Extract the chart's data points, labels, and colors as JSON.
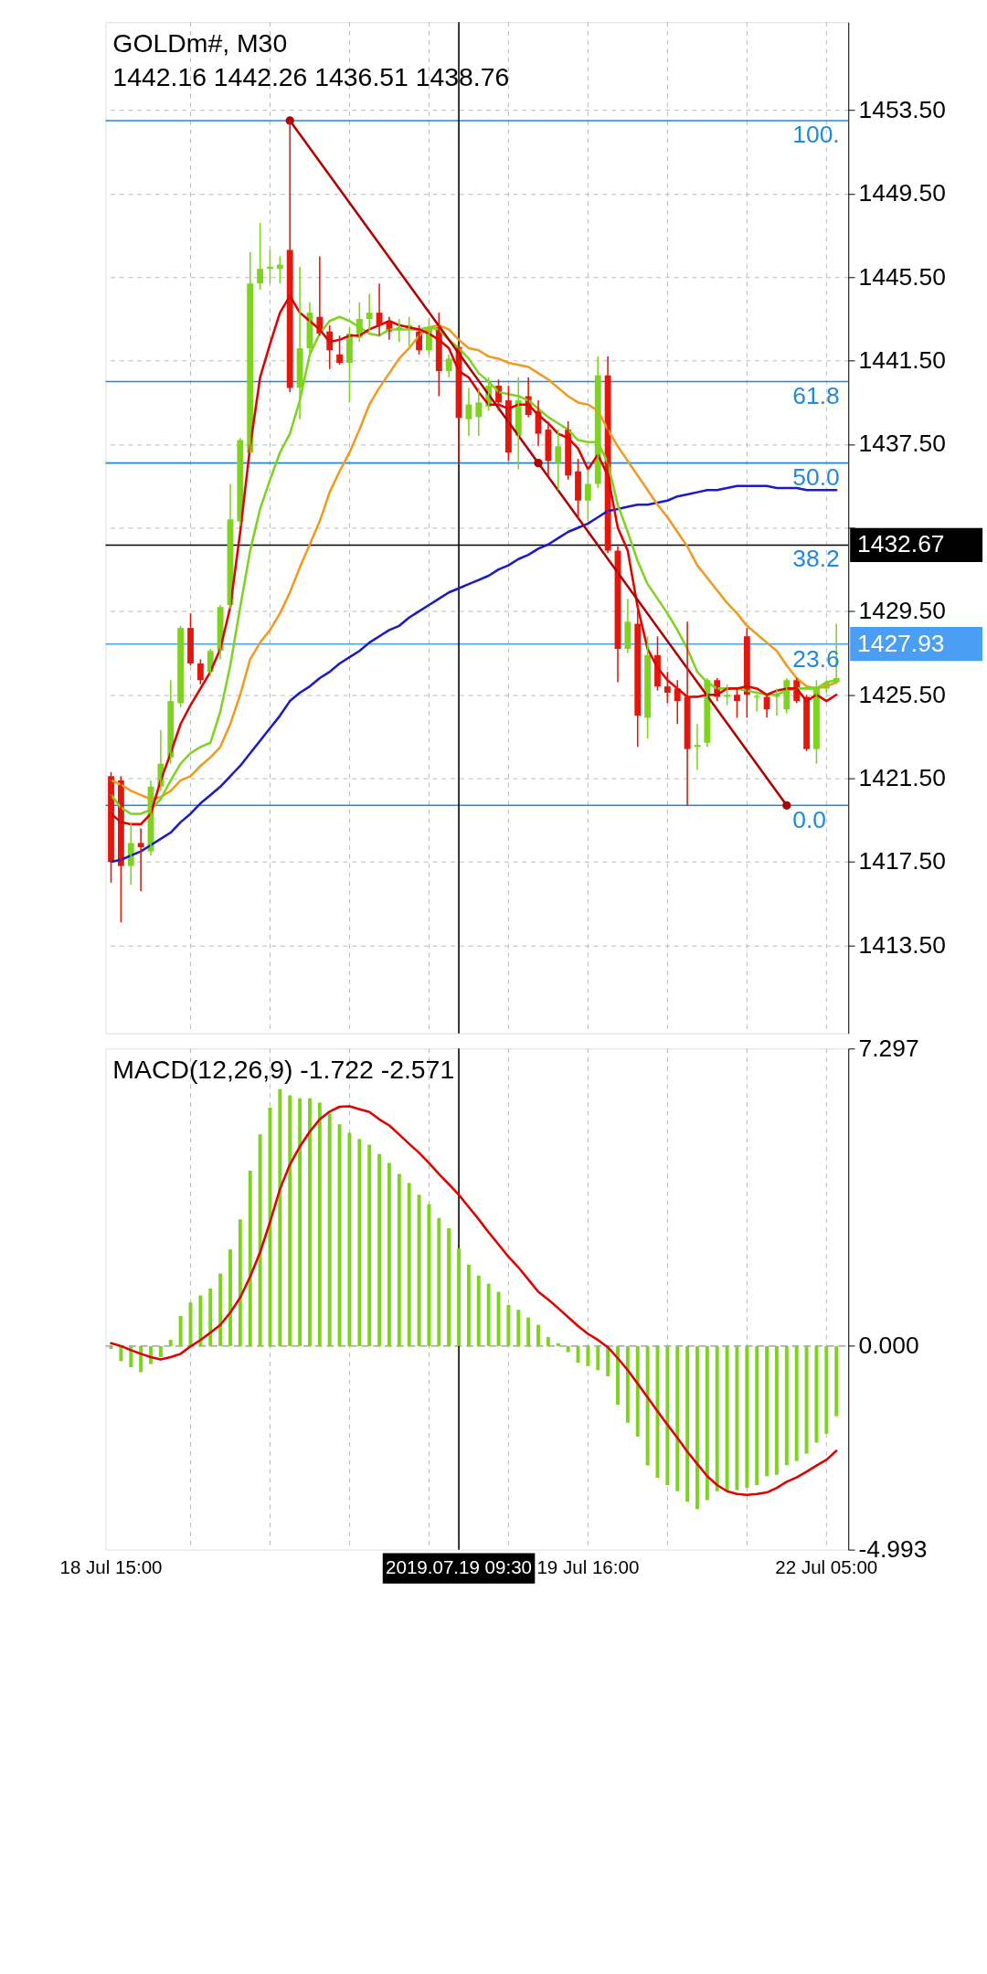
{
  "chart_data": [
    {
      "type": "candlestick",
      "title": "GOLDm#, M30",
      "subtitle": "1442.16 1442.26 1436.51 1438.76",
      "tick_labels": "y",
      "grid": true,
      "categories": [
        "18 Jul 15:00",
        null,
        null,
        null,
        null,
        null,
        null,
        null,
        null,
        null,
        null,
        null,
        null,
        null,
        null,
        null,
        null,
        null,
        null,
        null,
        null,
        null,
        null,
        null,
        null,
        null,
        null,
        null,
        null,
        null,
        null,
        null,
        null,
        null,
        null,
        "2019.07.19 09:30",
        null,
        null,
        null,
        null,
        null,
        null,
        null,
        null,
        null,
        null,
        null,
        null,
        "19 Jul 16:00",
        null,
        null,
        null,
        null,
        null,
        null,
        null,
        null,
        null,
        null,
        null,
        null,
        null,
        null,
        null,
        null,
        null,
        null,
        null,
        null,
        null,
        null,
        null,
        "22 Jul 05:00",
        null
      ],
      "ohlc": [
        [
          1421.6,
          1421.8,
          1416.5,
          1417.5
        ],
        [
          1421.4,
          1421.6,
          1414.6,
          1417.3
        ],
        [
          1417.3,
          1419.4,
          1416.4,
          1418.4
        ],
        [
          1418.4,
          1419.1,
          1416.1,
          1418.2
        ],
        [
          1418.0,
          1421.4,
          1417.8,
          1421.1
        ],
        [
          1421.1,
          1423.8,
          1420.9,
          1422.2
        ],
        [
          1422.5,
          1426.2,
          1422.2,
          1425.2
        ],
        [
          1425.1,
          1428.8,
          1424.9,
          1428.7
        ],
        [
          1428.7,
          1429.4,
          1426.9,
          1427.0
        ],
        [
          1427.0,
          1427.2,
          1426.0,
          1426.2
        ],
        [
          1426.6,
          1427.7,
          1426.4,
          1427.6
        ],
        [
          1427.6,
          1429.8,
          1427.2,
          1429.7
        ],
        [
          1429.8,
          1435.6,
          1429.6,
          1433.9
        ],
        [
          1433.8,
          1437.8,
          1433.6,
          1437.7
        ],
        [
          1437.1,
          1446.7,
          1437.1,
          1445.2
        ],
        [
          1445.2,
          1448.1,
          1444.9,
          1445.9
        ],
        [
          1445.9,
          1446.8,
          1445.2,
          1446.0
        ],
        [
          1445.9,
          1446.5,
          1445.2,
          1446.1
        ],
        [
          1446.8,
          1453.0,
          1440.0,
          1440.2
        ],
        [
          1440.2,
          1446.0,
          1438.7,
          1442.1
        ],
        [
          1442.1,
          1444.3,
          1441.8,
          1443.8
        ],
        [
          1443.6,
          1446.5,
          1442.7,
          1442.8
        ],
        [
          1442.9,
          1443.2,
          1441.1,
          1442.0
        ],
        [
          1441.8,
          1442.7,
          1441.3,
          1441.4
        ],
        [
          1441.4,
          1443.1,
          1439.5,
          1442.8
        ],
        [
          1442.6,
          1444.3,
          1442.4,
          1443.5
        ],
        [
          1443.5,
          1444.7,
          1442.9,
          1443.8
        ],
        [
          1443.8,
          1445.2,
          1442.7,
          1443.2
        ],
        [
          1443.4,
          1443.6,
          1442.5,
          1442.9
        ],
        [
          1443.0,
          1443.5,
          1442.4,
          1443.1
        ],
        [
          1443.0,
          1443.6,
          1442.2,
          1443.2
        ],
        [
          1442.9,
          1443.2,
          1441.8,
          1442.0
        ],
        [
          1442.0,
          1443.5,
          1441.8,
          1443.1
        ],
        [
          1443.1,
          1443.8,
          1439.8,
          1441.0
        ],
        [
          1441.0,
          1441.8,
          1440.7,
          1441.6
        ],
        [
          1442.16,
          1442.26,
          1436.51,
          1438.76
        ],
        [
          1438.7,
          1440.2,
          1437.9,
          1439.4
        ],
        [
          1438.8,
          1440.2,
          1437.9,
          1439.5
        ],
        [
          1439.3,
          1440.7,
          1439.1,
          1440.3
        ],
        [
          1440.3,
          1440.6,
          1439.1,
          1439.5
        ],
        [
          1439.6,
          1440.3,
          1436.7,
          1437.1
        ],
        [
          1437.9,
          1440.7,
          1436.3,
          1439.6
        ],
        [
          1439.8,
          1440.7,
          1438.8,
          1438.9
        ],
        [
          1439.1,
          1439.6,
          1437.4,
          1438.0
        ],
        [
          1438.2,
          1438.6,
          1436.0,
          1436.7
        ],
        [
          1436.6,
          1438.2,
          1435.3,
          1437.4
        ],
        [
          1438.2,
          1438.6,
          1435.8,
          1436.0
        ],
        [
          1436.2,
          1436.8,
          1433.9,
          1434.8
        ],
        [
          1434.8,
          1436.3,
          1433.8,
          1435.6
        ],
        [
          1435.6,
          1441.7,
          1435.4,
          1440.8
        ],
        [
          1440.8,
          1441.7,
          1432.3,
          1432.4
        ],
        [
          1432.4,
          1432.6,
          1426.1,
          1427.7
        ],
        [
          1427.7,
          1430.1,
          1427.5,
          1429.0
        ],
        [
          1428.9,
          1429.7,
          1423.0,
          1424.5
        ],
        [
          1424.4,
          1428.3,
          1423.4,
          1427.4
        ],
        [
          1427.4,
          1428.3,
          1425.7,
          1425.9
        ],
        [
          1425.9,
          1426.6,
          1425.1,
          1425.6
        ],
        [
          1425.8,
          1426.2,
          1424.1,
          1425.2
        ],
        [
          1425.4,
          1429.0,
          1420.2,
          1422.9
        ],
        [
          1423.0,
          1424.1,
          1421.9,
          1423.1
        ],
        [
          1423.2,
          1426.3,
          1423.0,
          1426.2
        ],
        [
          1426.2,
          1426.3,
          1425.2,
          1425.4
        ],
        [
          1425.4,
          1426.0,
          1425.0,
          1425.5
        ],
        [
          1425.5,
          1425.8,
          1424.4,
          1425.2
        ],
        [
          1428.3,
          1428.7,
          1424.4,
          1425.5
        ],
        [
          1425.4,
          1425.5,
          1424.7,
          1425.4
        ],
        [
          1425.4,
          1425.5,
          1424.4,
          1424.8
        ],
        [
          1425.4,
          1425.8,
          1424.5,
          1425.5
        ],
        [
          1424.8,
          1426.3,
          1424.6,
          1426.2
        ],
        [
          1426.2,
          1426.3,
          1425.1,
          1425.2
        ],
        [
          1425.4,
          1425.5,
          1422.8,
          1422.9
        ],
        [
          1422.9,
          1426.2,
          1422.2,
          1425.9
        ],
        [
          1425.8,
          1426.2,
          1425.6,
          1426.1
        ],
        [
          1426.1,
          1428.9,
          1426.0,
          1426.3
        ]
      ],
      "colors": [
        "#e3170d",
        "#e3170d",
        "#7ed321",
        "#e3170d",
        "#7ed321",
        "#7ed321",
        "#7ed321",
        "#7ed321",
        "#e3170d",
        "#e3170d",
        "#7ed321",
        "#7ed321",
        "#7ed321",
        "#7ed321",
        "#7ed321",
        "#7ed321",
        "#7ed321",
        "#7ed321",
        "#e3170d",
        "#7ed321",
        "#7ed321",
        "#e3170d",
        "#e3170d",
        "#e3170d",
        "#7ed321",
        "#7ed321",
        "#7ed321",
        "#e3170d",
        "#e3170d",
        "#7ed321",
        "#7ed321",
        "#e3170d",
        "#7ed321",
        "#e3170d",
        "#7ed321",
        "#e3170d",
        "#7ed321",
        "#7ed321",
        "#7ed321",
        "#e3170d",
        "#e3170d",
        "#7ed321",
        "#e3170d",
        "#e3170d",
        "#e3170d",
        "#7ed321",
        "#e3170d",
        "#e3170d",
        "#7ed321",
        "#7ed321",
        "#e3170d",
        "#e3170d",
        "#7ed321",
        "#e3170d",
        "#7ed321",
        "#e3170d",
        "#e3170d",
        "#e3170d",
        "#e3170d",
        "#7ed321",
        "#7ed321",
        "#e3170d",
        "#7ed321",
        "#e3170d",
        "#e3170d",
        "#7ed321",
        "#e3170d",
        "#7ed321",
        "#7ed321",
        "#e3170d",
        "#e3170d",
        "#7ed321",
        "#7ed321",
        "#7ed321"
      ],
      "series": [
        {
          "type": "line",
          "color": "#1a1acc",
          "values": [
            1417.5,
            1417.6,
            1417.8,
            1418.0,
            1418.3,
            1418.6,
            1418.9,
            1419.4,
            1419.8,
            1420.3,
            1420.7,
            1421.1,
            1421.6,
            1422.1,
            1422.7,
            1423.3,
            1423.9,
            1424.5,
            1425.2,
            1425.6,
            1425.9,
            1426.3,
            1426.6,
            1427.0,
            1427.3,
            1427.6,
            1428.0,
            1428.3,
            1428.6,
            1428.8,
            1429.2,
            1429.5,
            1429.8,
            1430.1,
            1430.4,
            1430.6,
            1430.8,
            1431.0,
            1431.2,
            1431.5,
            1431.7,
            1432.0,
            1432.2,
            1432.5,
            1432.7,
            1433.0,
            1433.3,
            1433.5,
            1433.7,
            1434.0,
            1434.3,
            1434.4,
            1434.5,
            1434.6,
            1434.6,
            1434.7,
            1434.8,
            1435.0,
            1435.1,
            1435.2,
            1435.3,
            1435.3,
            1435.4,
            1435.5,
            1435.5,
            1435.5,
            1435.5,
            1435.4,
            1435.4,
            1435.4,
            1435.3,
            1435.3,
            1435.3,
            1435.3
          ]
        },
        {
          "type": "line",
          "color": "#f29a1f",
          "values": [
            1421.4,
            1421.2,
            1420.9,
            1420.7,
            1420.5,
            1420.6,
            1420.9,
            1421.4,
            1421.6,
            1422.1,
            1422.5,
            1423.0,
            1424.1,
            1425.5,
            1427.2,
            1428.0,
            1428.6,
            1429.4,
            1430.4,
            1431.6,
            1432.7,
            1433.8,
            1435.2,
            1436.2,
            1437.1,
            1438.2,
            1439.4,
            1440.2,
            1440.9,
            1441.6,
            1442.1,
            1442.7,
            1443.1,
            1443.2,
            1443.0,
            1442.5,
            1442.1,
            1442.0,
            1441.7,
            1441.6,
            1441.4,
            1441.3,
            1441.2,
            1440.9,
            1440.6,
            1440.2,
            1439.8,
            1439.5,
            1439.4,
            1439.1,
            1438.2,
            1437.4,
            1436.7,
            1436.0,
            1435.3,
            1434.6,
            1434.0,
            1433.3,
            1432.6,
            1431.7,
            1431.1,
            1430.5,
            1429.9,
            1429.4,
            1428.8,
            1428.4,
            1428.0,
            1427.6,
            1426.9,
            1426.3,
            1425.9,
            1425.8,
            1425.9,
            1426.1
          ]
        },
        {
          "type": "line",
          "color": "#7ed321",
          "values": [
            1420.7,
            1420.1,
            1419.8,
            1419.8,
            1420.0,
            1420.5,
            1421.4,
            1422.2,
            1422.7,
            1423.0,
            1423.2,
            1424.7,
            1426.9,
            1429.7,
            1432.4,
            1434.4,
            1435.8,
            1437.1,
            1438.0,
            1439.6,
            1441.8,
            1442.8,
            1443.4,
            1443.6,
            1443.4,
            1443.1,
            1442.8,
            1442.7,
            1443.0,
            1443.0,
            1443.0,
            1443.0,
            1443.1,
            1443.0,
            1442.5,
            1442.1,
            1441.6,
            1440.9,
            1440.5,
            1440.0,
            1439.9,
            1439.8,
            1439.6,
            1439.2,
            1438.8,
            1438.5,
            1438.2,
            1437.7,
            1437.6,
            1437.6,
            1436.6,
            1434.6,
            1433.3,
            1431.9,
            1430.8,
            1430.1,
            1429.4,
            1428.6,
            1427.7,
            1426.6,
            1426.1,
            1425.8,
            1425.8,
            1425.8,
            1425.7,
            1425.6,
            1425.5,
            1425.5,
            1425.7,
            1425.8,
            1425.8,
            1425.8,
            1426.1,
            1426.2
          ]
        },
        {
          "type": "line",
          "color": "#e00000",
          "values": [
            1419.8,
            1419.4,
            1419.3,
            1419.3,
            1419.8,
            1421.4,
            1422.7,
            1424.1,
            1425.0,
            1425.8,
            1426.6,
            1427.7,
            1429.7,
            1433.3,
            1437.4,
            1440.7,
            1442.3,
            1443.8,
            1444.6,
            1443.8,
            1443.4,
            1443.0,
            1442.4,
            1442.5,
            1442.7,
            1442.7,
            1443.0,
            1443.2,
            1443.4,
            1443.2,
            1443.1,
            1443.0,
            1442.8,
            1442.5,
            1442.1,
            1441.0,
            1440.7,
            1440.0,
            1439.4,
            1439.4,
            1439.2,
            1439.4,
            1439.4,
            1438.9,
            1438.5,
            1438.0,
            1437.8,
            1437.3,
            1436.3,
            1437.0,
            1436.0,
            1433.5,
            1432.4,
            1429.7,
            1427.7,
            1426.8,
            1426.2,
            1425.8,
            1425.4,
            1425.4,
            1425.5,
            1425.5,
            1425.8,
            1425.8,
            1425.9,
            1425.8,
            1425.5,
            1425.7,
            1425.8,
            1425.8,
            1425.2,
            1425.5,
            1425.2,
            1425.5
          ]
        },
        {
          "type": "line",
          "color": "#b00000",
          "marker": "circle",
          "values": [
            null,
            null,
            null,
            null,
            null,
            null,
            null,
            null,
            null,
            null,
            null,
            null,
            null,
            null,
            null,
            null,
            null,
            null,
            1453.0,
            null,
            null,
            null,
            null,
            null,
            null,
            null,
            null,
            null,
            null,
            null,
            null,
            null,
            null,
            null,
            null,
            null,
            null,
            null,
            null,
            null,
            null,
            null,
            null,
            1436.6,
            null,
            null,
            null,
            null,
            null,
            null,
            null,
            null,
            null,
            null,
            null,
            null,
            null,
            null,
            null,
            null,
            null,
            null,
            null,
            null,
            null,
            null,
            null,
            null,
            1420.2,
            null,
            null,
            null,
            null,
            null
          ]
        }
      ],
      "ylim": [
        1409.5,
        1457.5
      ],
      "yticks": [
        {
          "value": 1413.5,
          "label": "1413.50"
        },
        {
          "value": 1417.5,
          "label": "1417.50"
        },
        {
          "value": 1421.5,
          "label": "1421.50"
        },
        {
          "value": 1425.5,
          "label": "1425.50"
        },
        {
          "value": 1429.5,
          "label": "1429.50"
        },
        {
          "value": 1433.5,
          "label": null
        },
        {
          "value": 1437.5,
          "label": "1437.50"
        },
        {
          "value": 1441.5,
          "label": "1441.50"
        },
        {
          "value": 1445.5,
          "label": "1445.50"
        },
        {
          "value": 1449.5,
          "label": "1449.50"
        },
        {
          "value": 1453.5,
          "label": "1453.50"
        }
      ],
      "ref_lines": [
        {
          "axis": "y",
          "value": 1453.0,
          "color": "#1e88e5"
        },
        {
          "axis": "y",
          "value": 1440.5,
          "color": "#1e88e5"
        },
        {
          "axis": "y",
          "value": 1436.6,
          "color": "#1e88e5"
        },
        {
          "axis": "y",
          "value": 1420.2,
          "color": "#1e88e5"
        },
        {
          "axis": "y",
          "value": 1427.93,
          "label": "1427.93",
          "color": "#4a9ff5"
        },
        {
          "axis": "y",
          "value": 1432.67,
          "label": "1432.67",
          "color": "#000000"
        },
        {
          "axis": "x",
          "value": "2019.07.19 09:30",
          "color": "#000000"
        }
      ],
      "annotations": [
        {
          "text": "100.",
          "y": 1453.0
        },
        {
          "text": "61.8",
          "y": 1440.5
        },
        {
          "text": "50.0",
          "y": 1436.6
        },
        {
          "text": "38.2",
          "y": 1432.7
        },
        {
          "text": "23.6",
          "y": 1427.9
        },
        {
          "text": "0.0",
          "y": 1420.2
        }
      ]
    },
    {
      "type": "bar",
      "title": "MACD(12,26,9) -1.722 -2.571",
      "grid": "x",
      "categories": [
        "18 Jul 15:00",
        null,
        null,
        null,
        null,
        null,
        null,
        null,
        null,
        null,
        null,
        null,
        null,
        null,
        null,
        null,
        null,
        null,
        null,
        null,
        null,
        null,
        null,
        null,
        null,
        null,
        null,
        null,
        null,
        null,
        null,
        null,
        null,
        null,
        null,
        "2019.07.19 09:30",
        null,
        null,
        null,
        null,
        null,
        null,
        null,
        null,
        null,
        null,
        null,
        null,
        "19 Jul 16:00",
        null,
        null,
        null,
        null,
        null,
        null,
        null,
        null,
        null,
        null,
        null,
        null,
        null,
        null,
        null,
        null,
        null,
        null,
        null,
        null,
        null,
        null,
        null,
        "22 Jul 05:00",
        null
      ],
      "series": [
        {
          "type": "bar",
          "color": "#7ed321",
          "values": [
            -0.07,
            -0.37,
            -0.52,
            -0.64,
            -0.44,
            -0.27,
            0.15,
            0.74,
            1.07,
            1.24,
            1.41,
            1.78,
            2.37,
            3.11,
            4.3,
            5.19,
            5.85,
            6.3,
            6.15,
            6.08,
            6.08,
            5.97,
            5.71,
            5.44,
            5.23,
            5.08,
            4.94,
            4.71,
            4.49,
            4.22,
            4.0,
            3.71,
            3.48,
            3.14,
            2.89,
            2.4,
            2.0,
            1.73,
            1.53,
            1.33,
            1.01,
            0.89,
            0.7,
            0.52,
            0.22,
            0.07,
            -0.15,
            -0.41,
            -0.49,
            -0.59,
            -0.74,
            -1.44,
            -1.88,
            -2.22,
            -2.93,
            -3.23,
            -3.41,
            -3.56,
            -3.82,
            -4.0,
            -3.78,
            -3.56,
            -3.56,
            -3.53,
            -3.48,
            -3.41,
            -3.19,
            -3.16,
            -2.92,
            -2.82,
            -2.64,
            -2.37,
            -2.15,
            -1.72
          ]
        },
        {
          "type": "line",
          "color": "#e00000",
          "values": [
            0.07,
            0.0,
            -0.1,
            -0.19,
            -0.27,
            -0.33,
            -0.27,
            -0.19,
            -0.01,
            0.15,
            0.33,
            0.52,
            0.82,
            1.19,
            1.7,
            2.3,
            3.04,
            3.85,
            4.45,
            4.89,
            5.26,
            5.56,
            5.75,
            5.87,
            5.88,
            5.81,
            5.74,
            5.56,
            5.41,
            5.19,
            4.96,
            4.74,
            4.49,
            4.22,
            3.97,
            3.71,
            3.41,
            3.11,
            2.79,
            2.49,
            2.19,
            1.93,
            1.63,
            1.33,
            1.14,
            0.93,
            0.71,
            0.49,
            0.3,
            0.15,
            -0.03,
            -0.3,
            -0.59,
            -0.92,
            -1.26,
            -1.6,
            -1.93,
            -2.25,
            -2.59,
            -2.89,
            -3.19,
            -3.41,
            -3.56,
            -3.63,
            -3.65,
            -3.63,
            -3.59,
            -3.48,
            -3.33,
            -3.22,
            -3.08,
            -2.93,
            -2.79,
            -2.57
          ]
        }
      ],
      "ylim": [
        -4.993,
        7.297
      ],
      "yticks": [
        -4.993,
        {
          "value": 0,
          "label": "0.000"
        },
        7.297
      ],
      "ref_lines": [
        {
          "axis": "y",
          "value": 0,
          "color": "#b0b0b0",
          "line_style": "dashed"
        },
        {
          "axis": "x",
          "value": "2019.07.19 09:30",
          "color": "#000000"
        }
      ]
    }
  ]
}
